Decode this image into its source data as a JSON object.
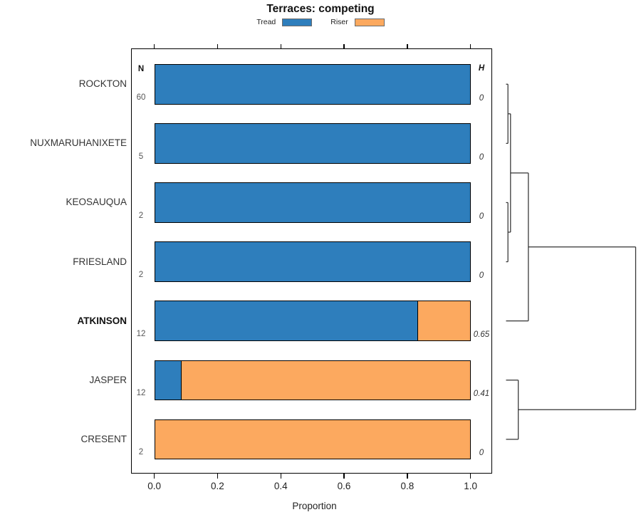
{
  "title": "Terraces: competing",
  "legend": {
    "items": [
      {
        "label": "Tread",
        "color": "#2e7ebc"
      },
      {
        "label": "Riser",
        "color": "#fca95f"
      }
    ]
  },
  "columns": {
    "n_header": "N",
    "h_header": "H"
  },
  "axis": {
    "xlabel": "Proportion",
    "ticks": [
      "0.0",
      "0.2",
      "0.4",
      "0.6",
      "0.8",
      "1.0"
    ],
    "tick_values": [
      0,
      0.2,
      0.4,
      0.6,
      0.8,
      1.0
    ]
  },
  "chart_data": {
    "type": "bar",
    "orientation": "horizontal-stacked",
    "title": "Terraces: competing",
    "xlabel": "Proportion",
    "xlim": [
      0,
      1
    ],
    "categories": [
      "ROCKTON",
      "NUXMARUHANIXETE",
      "KEOSAUQUA",
      "FRIESLAND",
      "ATKINSON",
      "JASPER",
      "CRESENT"
    ],
    "bold_category": "ATKINSON",
    "series": [
      {
        "name": "Tread",
        "color": "#2e7ebc",
        "values": [
          1.0,
          1.0,
          1.0,
          1.0,
          0.833,
          0.083,
          0.0
        ]
      },
      {
        "name": "Riser",
        "color": "#fca95f",
        "values": [
          0.0,
          0.0,
          0.0,
          0.0,
          0.167,
          0.917,
          1.0
        ]
      }
    ],
    "n_values": [
      "60",
      "5",
      "2",
      "2",
      "12",
      "12",
      "2"
    ],
    "h_values": [
      "0",
      "0",
      "0",
      "0",
      "0.65",
      "0.41",
      "0"
    ],
    "dendrogram": {
      "note": "heights are fractions of the dendrogram width, leaves at 0",
      "merges": [
        {
          "id": "m1",
          "children": [
            "ROCKTON",
            "NUXMARUHANIXETE"
          ],
          "height": 0.012
        },
        {
          "id": "m2",
          "children": [
            "KEOSAUQUA",
            "FRIESLAND"
          ],
          "height": 0.012
        },
        {
          "id": "m3",
          "children": [
            "m1",
            "m2"
          ],
          "height": 0.032
        },
        {
          "id": "m4",
          "children": [
            "JASPER",
            "CRESENT"
          ],
          "height": 0.092
        },
        {
          "id": "m5",
          "children": [
            "m3",
            "ATKINSON"
          ],
          "height": 0.17
        },
        {
          "id": "m6",
          "children": [
            "m5",
            "m4"
          ],
          "height": 1.0
        }
      ]
    }
  }
}
